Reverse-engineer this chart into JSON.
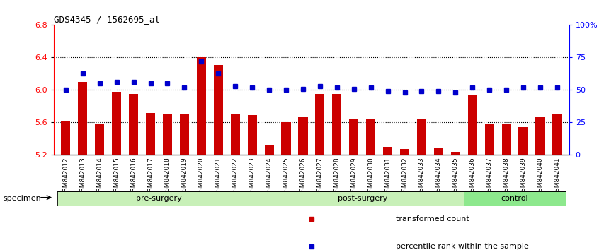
{
  "title": "GDS4345 / 1562695_at",
  "categories": [
    "GSM842012",
    "GSM842013",
    "GSM842014",
    "GSM842015",
    "GSM842016",
    "GSM842017",
    "GSM842018",
    "GSM842019",
    "GSM842020",
    "GSM842021",
    "GSM842022",
    "GSM842023",
    "GSM842024",
    "GSM842025",
    "GSM842026",
    "GSM842027",
    "GSM842028",
    "GSM842029",
    "GSM842030",
    "GSM842031",
    "GSM842032",
    "GSM842033",
    "GSM842034",
    "GSM842035",
    "GSM842036",
    "GSM842037",
    "GSM842038",
    "GSM842039",
    "GSM842040",
    "GSM842041"
  ],
  "bar_values": [
    5.61,
    6.1,
    5.58,
    5.98,
    5.95,
    5.72,
    5.7,
    5.7,
    6.4,
    6.31,
    5.7,
    5.69,
    5.32,
    5.6,
    5.67,
    5.95,
    5.95,
    5.65,
    5.65,
    5.3,
    5.27,
    5.65,
    5.29,
    5.24,
    5.93,
    5.59,
    5.58,
    5.54,
    5.67,
    5.7
  ],
  "percentile_values": [
    50,
    63,
    55,
    56,
    56,
    55,
    55,
    52,
    72,
    63,
    53,
    52,
    50,
    50,
    51,
    53,
    52,
    51,
    52,
    49,
    48,
    49,
    49,
    48,
    52,
    50,
    50,
    52,
    52,
    52
  ],
  "groups": [
    {
      "label": "pre-surgery",
      "start": 0,
      "end": 11
    },
    {
      "label": "post-surgery",
      "start": 12,
      "end": 23
    },
    {
      "label": "control",
      "start": 24,
      "end": 29
    }
  ],
  "group_colors": [
    "#c8f0b8",
    "#c8f0b8",
    "#8de88d"
  ],
  "bar_color": "#cc0000",
  "dot_color": "#0000cc",
  "ylim_left": [
    5.2,
    6.8
  ],
  "ylim_right": [
    0,
    100
  ],
  "yticks_left": [
    5.2,
    5.6,
    6.0,
    6.4,
    6.8
  ],
  "yticks_right": [
    0,
    25,
    50,
    75,
    100
  ],
  "ytick_labels_right": [
    "0",
    "25",
    "50",
    "75",
    "100%"
  ],
  "hlines": [
    5.6,
    6.0,
    6.4
  ],
  "bg_color": "#ffffff",
  "specimen_label": "specimen",
  "legend_items": [
    {
      "label": "transformed count",
      "color": "#cc0000"
    },
    {
      "label": "percentile rank within the sample",
      "color": "#0000cc"
    }
  ]
}
